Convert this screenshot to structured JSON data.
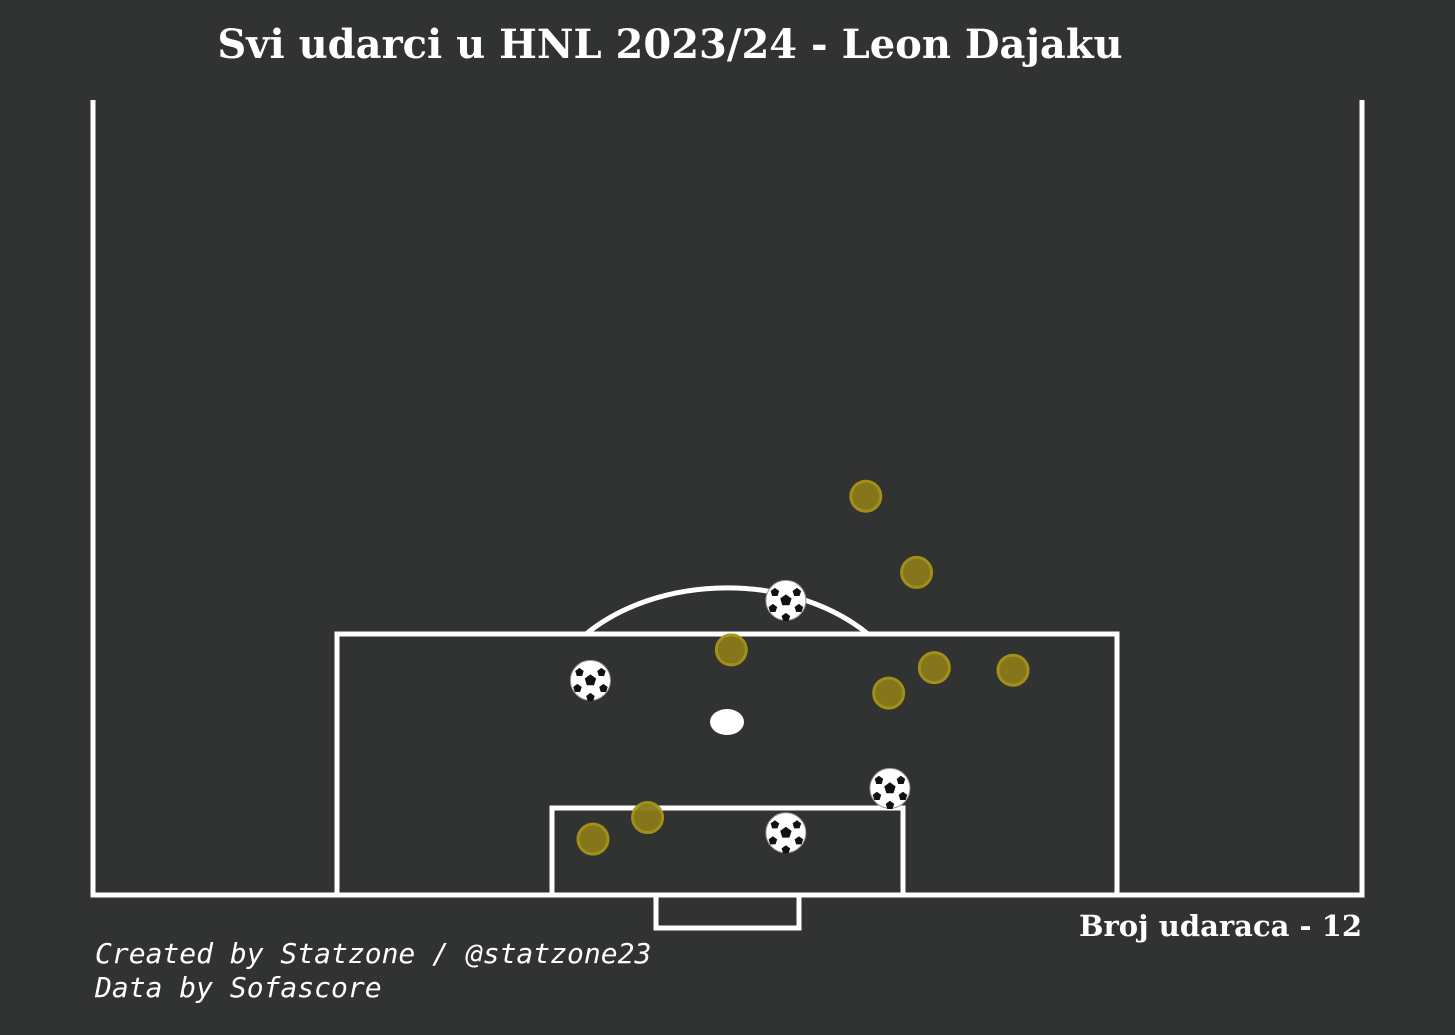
{
  "chart_data": {
    "type": "scatter",
    "title": "Svi udarci u HNL 2023/24 - Leon Dajaku",
    "summary": "Broj udaraca - 12",
    "credits": [
      "Created by Statzone / @statzone23",
      "Data by Sofascore"
    ],
    "xlim": [
      0,
      100
    ],
    "ylim": [
      0,
      62.6
    ],
    "series": [
      {
        "marker": "ball",
        "color": "#ffffff",
        "x": [
          54.6,
          39.2,
          62.8,
          54.6
        ],
        "values": [
          23.2,
          16.9,
          8.4,
          4.9
        ]
      },
      {
        "marker": "circle",
        "color": "#8a7a1a",
        "x": [
          60.9,
          64.9,
          50.3,
          66.3,
          72.5,
          62.7,
          43.7,
          39.4
        ],
        "values": [
          31.4,
          25.4,
          19.3,
          17.9,
          17.7,
          15.9,
          6.1,
          4.4
        ]
      }
    ]
  }
}
